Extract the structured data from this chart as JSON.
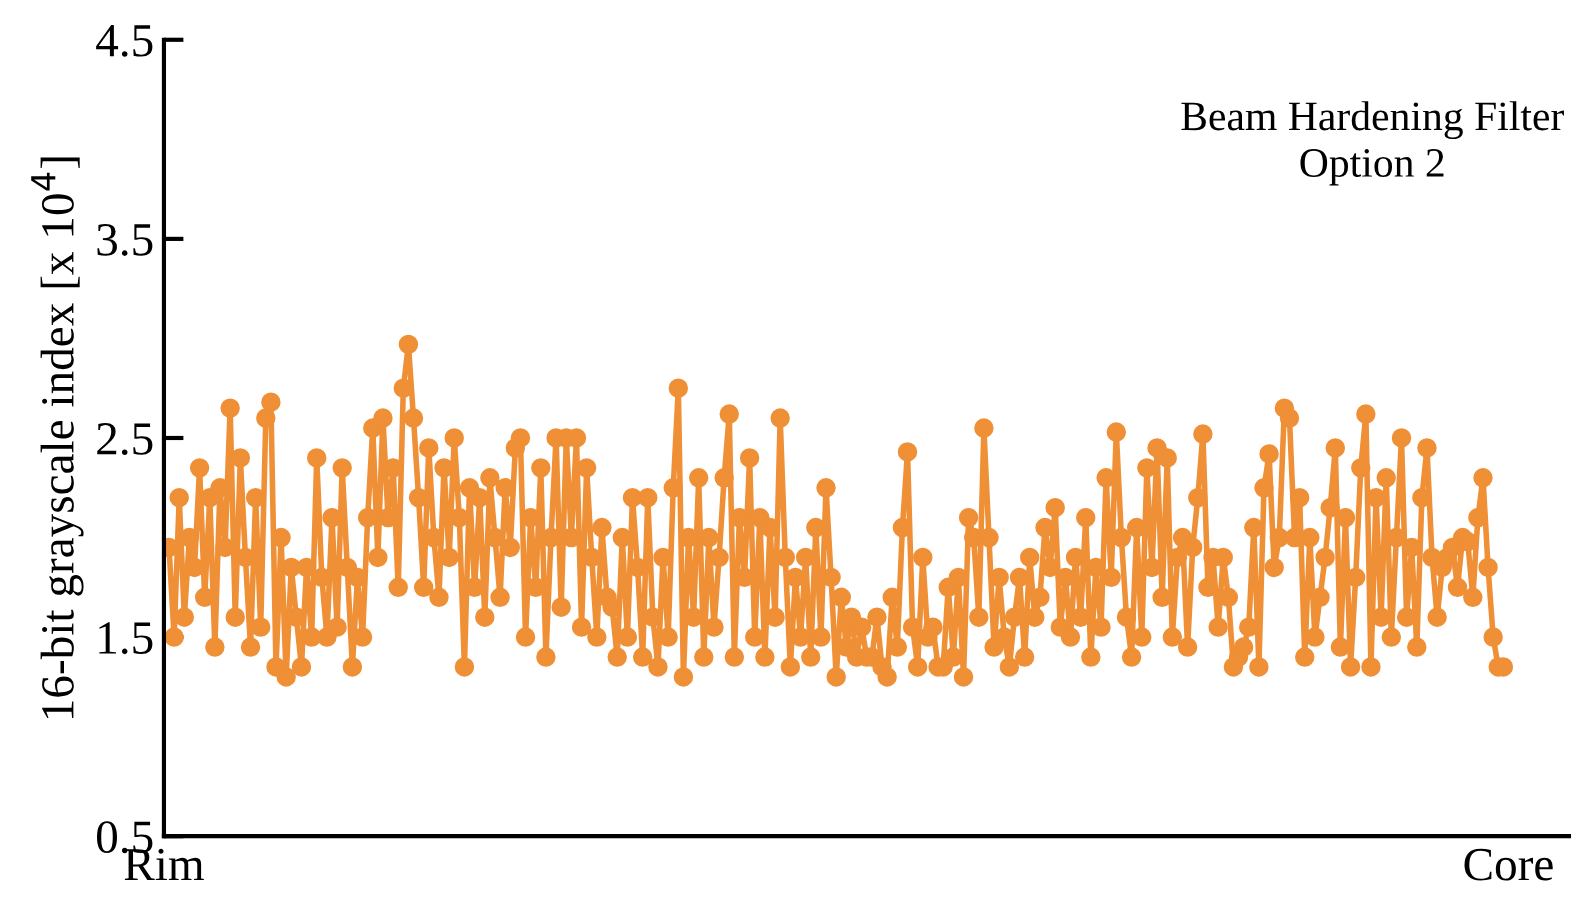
{
  "chart_data": {
    "type": "line",
    "ylabel": "16-bit grayscale index [x 10$^{4}$]",
    "annotations": [
      "Beam Hardening Filter\nOption 2"
    ],
    "categories": [
      "Rim",
      null,
      null,
      null,
      null,
      null,
      null,
      null,
      null,
      null,
      null,
      null,
      null,
      null,
      null,
      null,
      null,
      null,
      null,
      null,
      null,
      null,
      null,
      null,
      null,
      null,
      null,
      null,
      null,
      null,
      null,
      null,
      null,
      null,
      null,
      null,
      null,
      null,
      null,
      null,
      null,
      null,
      null,
      null,
      null,
      null,
      null,
      null,
      null,
      null,
      null,
      null,
      null,
      null,
      null,
      null,
      null,
      null,
      null,
      null,
      null,
      null,
      null,
      null,
      null,
      null,
      null,
      null,
      null,
      null,
      null,
      null,
      null,
      null,
      null,
      null,
      null,
      null,
      null,
      null,
      null,
      null,
      null,
      null,
      null,
      null,
      null,
      null,
      null,
      null,
      null,
      null,
      null,
      null,
      null,
      null,
      null,
      null,
      null,
      null,
      null,
      null,
      null,
      null,
      null,
      null,
      null,
      null,
      null,
      null,
      null,
      null,
      null,
      null,
      null,
      null,
      null,
      null,
      null,
      null,
      null,
      null,
      null,
      null,
      null,
      null,
      null,
      null,
      null,
      null,
      null,
      null,
      null,
      null,
      null,
      null,
      null,
      null,
      null,
      null,
      null,
      null,
      null,
      null,
      null,
      null,
      null,
      null,
      null,
      null,
      null,
      null,
      null,
      null,
      null,
      null,
      null,
      null,
      null,
      null,
      null,
      null,
      null,
      null,
      null,
      null,
      null,
      null,
      null,
      null,
      null,
      null,
      null,
      null,
      null,
      null,
      null,
      null,
      null,
      null,
      null,
      null,
      null,
      null,
      null,
      null,
      null,
      null,
      null,
      null,
      null,
      null,
      null,
      null,
      null,
      null,
      null,
      null,
      null,
      null,
      null,
      null,
      null,
      null,
      null,
      null,
      null,
      null,
      null,
      null,
      null,
      null,
      null,
      null,
      null,
      null,
      null,
      null,
      null,
      null,
      null,
      null,
      null,
      null,
      null,
      null,
      null,
      null,
      null,
      null,
      null,
      null,
      null,
      null,
      null,
      null,
      null,
      null,
      null,
      null,
      null,
      null,
      null,
      null,
      null,
      null,
      null,
      null,
      null,
      null,
      null,
      null,
      null,
      null,
      null,
      null,
      null,
      null,
      null,
      null,
      null,
      null,
      null,
      null,
      "Core"
    ],
    "ylim": [
      0.5,
      4.5
    ],
    "yticks": [
      0.5,
      1.5,
      2.5,
      3.5,
      4.5
    ],
    "marker": "circle",
    "line_style": "solid",
    "grid": false,
    "legend": false,
    "series": [
      {
        "color": "#ef8f36",
        "values": [
          null,
          1.95,
          1.5,
          2.2,
          1.6,
          2.0,
          1.85,
          2.35,
          1.7,
          2.2,
          1.45,
          2.25,
          1.95,
          2.65,
          1.6,
          2.4,
          1.9,
          1.45,
          2.2,
          1.55,
          2.6,
          2.68,
          1.35,
          2.0,
          1.3,
          1.85,
          1.6,
          1.35,
          1.85,
          1.5,
          2.4,
          1.8,
          1.5,
          2.1,
          1.55,
          2.35,
          1.85,
          1.35,
          1.8,
          1.5,
          2.1,
          2.55,
          1.9,
          2.6,
          2.1,
          2.35,
          1.75,
          2.75,
          2.97,
          2.6,
          2.2,
          1.75,
          2.45,
          2.0,
          1.7,
          2.35,
          1.9,
          2.5,
          2.1,
          1.35,
          2.25,
          1.75,
          2.2,
          1.6,
          2.3,
          2.0,
          1.7,
          2.25,
          1.95,
          2.45,
          2.5,
          1.5,
          2.1,
          1.75,
          2.35,
          1.4,
          2.0,
          2.5,
          1.65,
          2.5,
          2.0,
          2.5,
          1.55,
          2.35,
          1.9,
          1.5,
          2.05,
          1.7,
          1.65,
          1.4,
          2.0,
          1.5,
          2.2,
          1.85,
          1.4,
          2.2,
          1.6,
          1.35,
          1.9,
          1.5,
          2.25,
          2.75,
          1.3,
          2.0,
          1.6,
          2.3,
          1.4,
          2.0,
          1.55,
          1.9,
          2.3,
          2.62,
          1.4,
          2.1,
          1.8,
          2.4,
          1.5,
          2.1,
          1.4,
          2.05,
          1.6,
          2.6,
          1.9,
          1.35,
          1.8,
          1.5,
          1.9,
          1.4,
          2.05,
          1.5,
          2.25,
          1.8,
          1.3,
          1.7,
          1.45,
          1.6,
          1.4,
          1.55,
          1.4,
          1.4,
          1.6,
          1.35,
          1.3,
          1.7,
          1.45,
          2.05,
          2.43,
          1.55,
          1.35,
          1.9,
          1.5,
          1.55,
          1.35,
          1.35,
          1.75,
          1.4,
          1.8,
          1.3,
          2.1,
          2.0,
          1.6,
          2.55,
          2.0,
          1.45,
          1.8,
          1.5,
          1.35,
          1.6,
          1.8,
          1.4,
          1.9,
          1.6,
          1.7,
          2.05,
          1.85,
          2.15,
          1.55,
          1.8,
          1.5,
          1.9,
          1.6,
          2.1,
          1.4,
          1.85,
          1.55,
          2.3,
          1.8,
          2.53,
          2.0,
          1.6,
          1.4,
          2.05,
          1.5,
          2.35,
          1.85,
          2.45,
          1.7,
          2.4,
          1.5,
          1.9,
          2.0,
          1.45,
          1.95,
          2.2,
          2.52,
          1.75,
          1.9,
          1.55,
          1.9,
          1.7,
          1.35,
          1.4,
          1.45,
          1.55,
          2.05,
          1.35,
          2.25,
          2.42,
          1.85,
          2.0,
          2.65,
          2.6,
          2.0,
          2.2,
          1.4,
          2.0,
          1.5,
          1.7,
          1.9,
          2.15,
          2.45,
          1.45,
          2.1,
          1.35,
          1.8,
          2.35,
          2.62,
          1.35,
          2.2,
          1.6,
          2.3,
          1.5,
          2.0,
          2.5,
          1.6,
          1.95,
          1.45,
          2.2,
          2.45,
          1.9,
          1.6,
          1.85,
          1.9,
          1.95,
          1.75,
          2.0,
          1.98,
          1.7,
          2.1,
          2.3,
          1.85,
          1.5,
          1.35,
          1.35,
          null
        ]
      }
    ]
  }
}
